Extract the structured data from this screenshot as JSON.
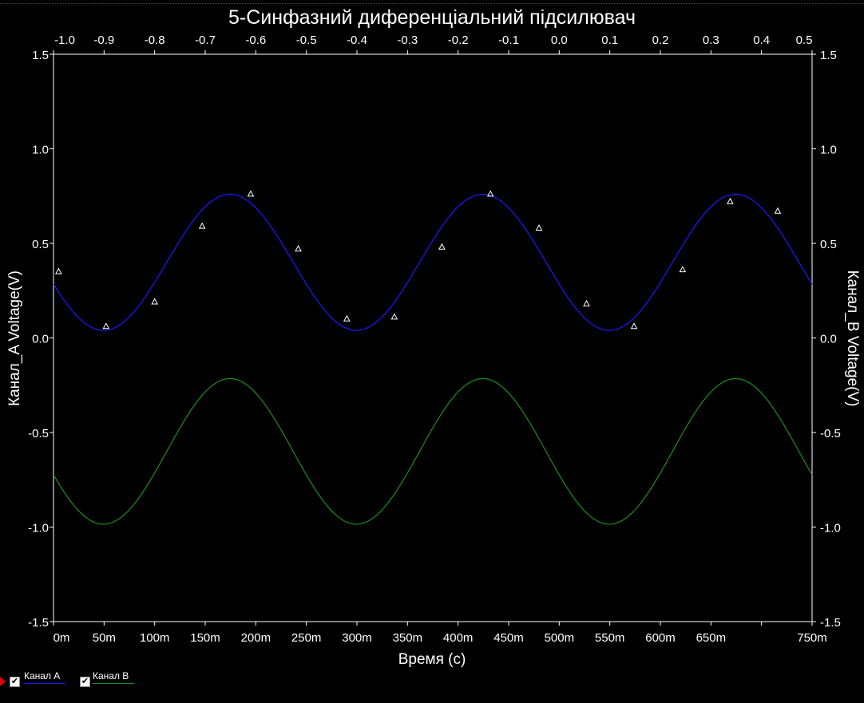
{
  "chart_data": {
    "type": "line",
    "title": "5-Синфазний диференціальний підсилювач",
    "xlabel": "Время (с)",
    "ylabel_left": "Канал_A Voltage(V)",
    "ylabel_right": "Канал_B Voltage(V)",
    "xlim": [
      0,
      0.75
    ],
    "ylim": [
      -1.5,
      1.5
    ],
    "x_ticks": [
      {
        "v": 0,
        "label": "0m"
      },
      {
        "v": 0.05,
        "label": "50m"
      },
      {
        "v": 0.1,
        "label": "100m"
      },
      {
        "v": 0.15,
        "label": "150m"
      },
      {
        "v": 0.2,
        "label": "200m"
      },
      {
        "v": 0.25,
        "label": "250m"
      },
      {
        "v": 0.3,
        "label": "300m"
      },
      {
        "v": 0.35,
        "label": "350m"
      },
      {
        "v": 0.4,
        "label": "400m"
      },
      {
        "v": 0.45,
        "label": "450m"
      },
      {
        "v": 0.5,
        "label": "500m"
      },
      {
        "v": 0.55,
        "label": "550m"
      },
      {
        "v": 0.6,
        "label": "600m"
      },
      {
        "v": 0.65,
        "label": "650m"
      },
      {
        "v": 0.75,
        "label": "750m"
      }
    ],
    "x_minor_unlabeled": [
      0.7
    ],
    "top_axis": {
      "xlim": [
        -1.0,
        0.5
      ],
      "ticks": [
        {
          "v": -1.0,
          "label": "-1.0"
        },
        {
          "v": -0.9,
          "label": "-0.9"
        },
        {
          "v": -0.8,
          "label": "-0.8"
        },
        {
          "v": -0.7,
          "label": "-0.7"
        },
        {
          "v": -0.6,
          "label": "-0.6"
        },
        {
          "v": -0.5,
          "label": "-0.5"
        },
        {
          "v": -0.4,
          "label": "-0.4"
        },
        {
          "v": -0.3,
          "label": "-0.3"
        },
        {
          "v": -0.2,
          "label": "-0.2"
        },
        {
          "v": -0.1,
          "label": "-0.1"
        },
        {
          "v": 0.0,
          "label": "0.0"
        },
        {
          "v": 0.1,
          "label": "0.1"
        },
        {
          "v": 0.2,
          "label": "0.2"
        },
        {
          "v": 0.3,
          "label": "0.3"
        },
        {
          "v": 0.4,
          "label": "0.4"
        },
        {
          "v": 0.5,
          "label": "0.5"
        }
      ]
    },
    "y_ticks": [
      {
        "v": 1.5,
        "label": "1.5"
      },
      {
        "v": 1.0,
        "label": "1.0"
      },
      {
        "v": 0.5,
        "label": "0.5"
      },
      {
        "v": 0.0,
        "label": "0.0"
      },
      {
        "v": -0.5,
        "label": "-0.5"
      },
      {
        "v": -1.0,
        "label": "-1.0"
      },
      {
        "v": -1.5,
        "label": "-1.5"
      }
    ],
    "series": [
      {
        "name": "Канал А",
        "color": "#1a1aff",
        "model": {
          "offset": 0.4,
          "amplitude": 0.36,
          "frequency_hz": 4.0,
          "phase_rad": 3.47
        },
        "markers": [
          {
            "x": 0.005,
            "y": 0.35
          },
          {
            "x": 0.052,
            "y": 0.06
          },
          {
            "x": 0.1,
            "y": 0.19
          },
          {
            "x": 0.147,
            "y": 0.59
          },
          {
            "x": 0.195,
            "y": 0.76
          },
          {
            "x": 0.242,
            "y": 0.47
          },
          {
            "x": 0.29,
            "y": 0.1
          },
          {
            "x": 0.337,
            "y": 0.11
          },
          {
            "x": 0.384,
            "y": 0.48
          },
          {
            "x": 0.432,
            "y": 0.76
          },
          {
            "x": 0.48,
            "y": 0.58
          },
          {
            "x": 0.527,
            "y": 0.18
          },
          {
            "x": 0.574,
            "y": 0.06
          },
          {
            "x": 0.622,
            "y": 0.36
          },
          {
            "x": 0.669,
            "y": 0.72
          },
          {
            "x": 0.716,
            "y": 0.67
          }
        ]
      },
      {
        "name": "Канал B",
        "color": "#1a8f1a",
        "model": {
          "offset": -0.6,
          "amplitude": 0.385,
          "frequency_hz": 4.0,
          "phase_rad": 3.47
        }
      }
    ]
  },
  "legend": {
    "items": [
      {
        "label": "Канал А",
        "color": "#1a1aff",
        "checked": "✔"
      },
      {
        "label": "Канал B",
        "color": "#1a8f1a",
        "checked": "✔"
      }
    ]
  }
}
